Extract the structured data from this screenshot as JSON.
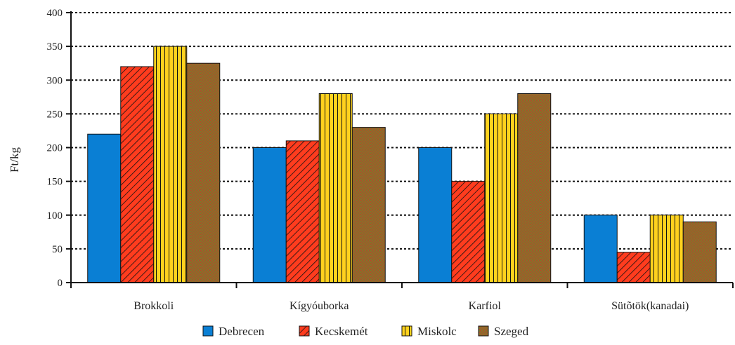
{
  "chart_data": {
    "type": "bar",
    "title": "",
    "xlabel": "",
    "ylabel": "Ft/kg",
    "ylim": [
      0,
      400
    ],
    "yticks": [
      0,
      50,
      100,
      150,
      200,
      250,
      300,
      350,
      400
    ],
    "grid": true,
    "legend_position": "bottom",
    "categories": [
      "Brokkoli",
      "Kígyóuborka",
      "Karfiol",
      "Sütõtök(kanadai)"
    ],
    "series": [
      {
        "name": "Debrecen",
        "values": [
          220,
          200,
          200,
          100
        ],
        "color": "#0a7fd4",
        "pattern": "solid"
      },
      {
        "name": "Kecskemét",
        "values": [
          320,
          210,
          150,
          45
        ],
        "color": "#ff3c1e",
        "pattern": "diagonal-hatch"
      },
      {
        "name": "Miskolc",
        "values": [
          350,
          280,
          250,
          100
        ],
        "color": "#ffd21e",
        "pattern": "vertical-stripes"
      },
      {
        "name": "Szeged",
        "values": [
          325,
          230,
          280,
          90
        ],
        "color": "#6b8a2a",
        "pattern": "crosshatch"
      }
    ]
  }
}
